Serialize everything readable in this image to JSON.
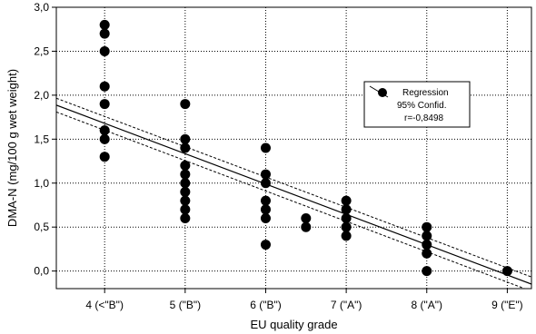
{
  "chart_data": {
    "type": "scatter",
    "xlabel": "EU quality grade",
    "ylabel": "DMA-N (mg/100 g wet weight)",
    "xlim": [
      3.4,
      9.3
    ],
    "ylim": [
      -0.2,
      3.0
    ],
    "x_ticks": [
      {
        "value": 4,
        "label": "4 (<\"B\")"
      },
      {
        "value": 5,
        "label": "5 (\"B\")"
      },
      {
        "value": 6,
        "label": "6 (\"B\")"
      },
      {
        "value": 7,
        "label": "7 (\"A\")"
      },
      {
        "value": 8,
        "label": "8 (\"A\")"
      },
      {
        "value": 9,
        "label": "9 (\"E\")"
      }
    ],
    "y_ticks": [
      "0,0",
      "0,5",
      "1,0",
      "1,5",
      "2,0",
      "2,5",
      "3,0"
    ],
    "y_tick_values": [
      0,
      0.5,
      1.0,
      1.5,
      2.0,
      2.5,
      3.0
    ],
    "grid": "dotted",
    "points": [
      {
        "x": 4,
        "y": 2.8
      },
      {
        "x": 4,
        "y": 2.7
      },
      {
        "x": 4,
        "y": 2.5
      },
      {
        "x": 4,
        "y": 2.1
      },
      {
        "x": 4,
        "y": 1.9
      },
      {
        "x": 4,
        "y": 1.6
      },
      {
        "x": 4,
        "y": 1.5
      },
      {
        "x": 4,
        "y": 1.3
      },
      {
        "x": 5,
        "y": 1.9
      },
      {
        "x": 5,
        "y": 1.5
      },
      {
        "x": 5,
        "y": 1.4
      },
      {
        "x": 5,
        "y": 1.2
      },
      {
        "x": 5,
        "y": 1.1
      },
      {
        "x": 5,
        "y": 1.0
      },
      {
        "x": 5,
        "y": 0.9
      },
      {
        "x": 5,
        "y": 0.8
      },
      {
        "x": 5,
        "y": 0.7
      },
      {
        "x": 5,
        "y": 0.6
      },
      {
        "x": 6,
        "y": 1.4
      },
      {
        "x": 6,
        "y": 1.1
      },
      {
        "x": 6,
        "y": 1.0
      },
      {
        "x": 6,
        "y": 0.8
      },
      {
        "x": 6,
        "y": 0.7
      },
      {
        "x": 6,
        "y": 0.6
      },
      {
        "x": 6,
        "y": 0.3
      },
      {
        "x": 6.5,
        "y": 0.6
      },
      {
        "x": 6.5,
        "y": 0.5
      },
      {
        "x": 7,
        "y": 0.8
      },
      {
        "x": 7,
        "y": 0.7
      },
      {
        "x": 7,
        "y": 0.6
      },
      {
        "x": 7,
        "y": 0.5
      },
      {
        "x": 7,
        "y": 0.4
      },
      {
        "x": 8,
        "y": 0.5
      },
      {
        "x": 8,
        "y": 0.4
      },
      {
        "x": 8,
        "y": 0.3
      },
      {
        "x": 8,
        "y": 0.2
      },
      {
        "x": 8,
        "y": 0.0
      },
      {
        "x": 9,
        "y": 0.0
      }
    ],
    "regression": {
      "slope": -0.345,
      "intercept": 3.06,
      "x_range": [
        3.4,
        9.3
      ],
      "ci_halfwidth": 0.05,
      "r": "r=-0,8498"
    },
    "legend": {
      "position": "top-right",
      "entries": [
        "Regression",
        "95% Confid.",
        "r=-0,8498"
      ]
    }
  }
}
